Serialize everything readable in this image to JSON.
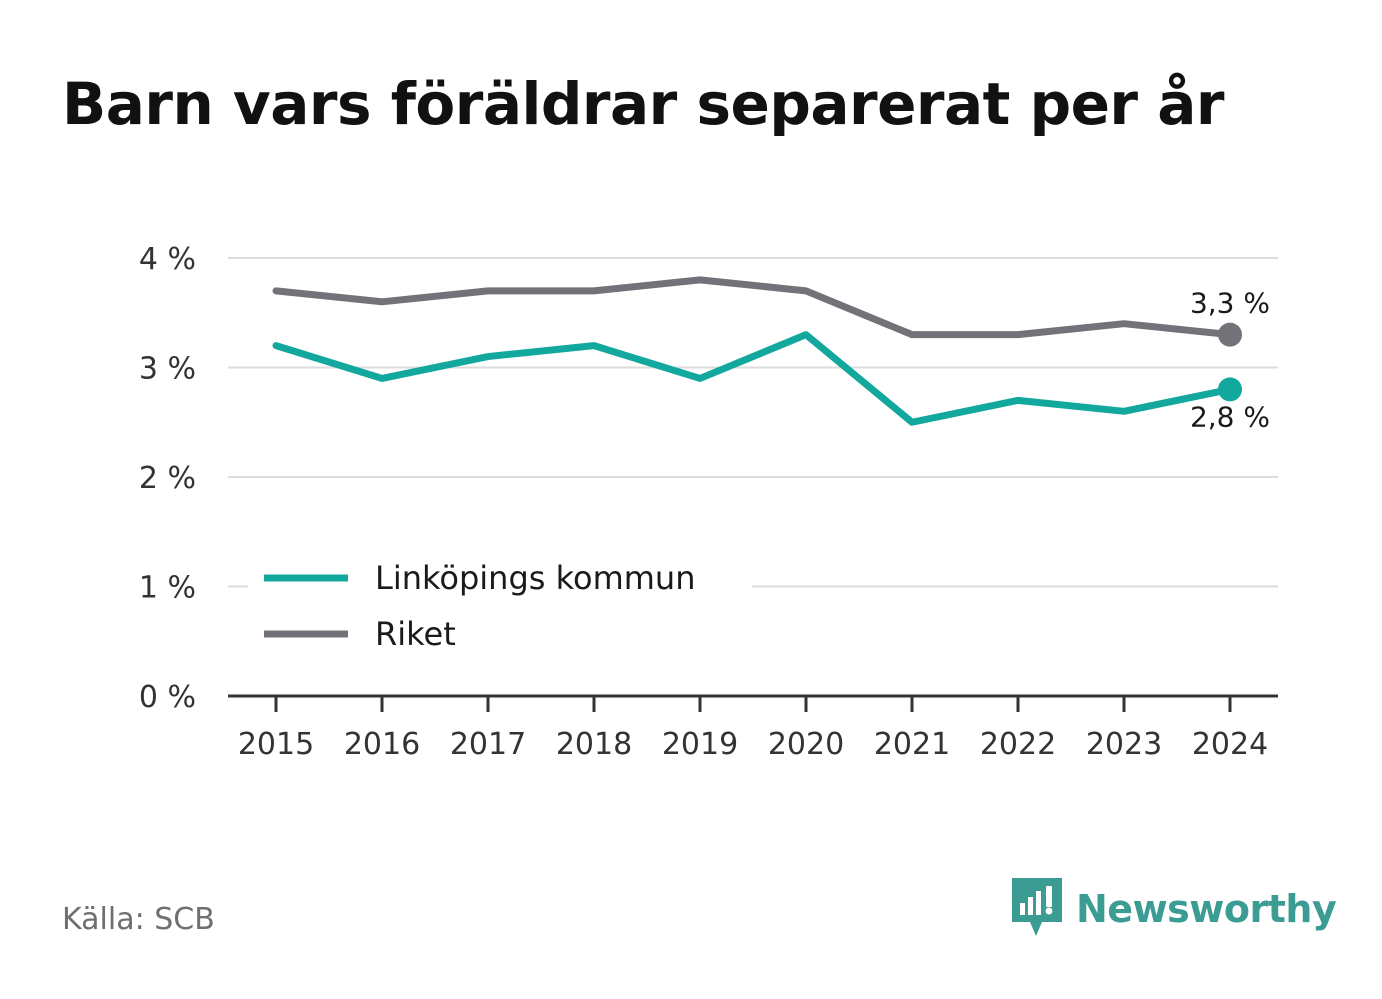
{
  "title": "Barn vars föräldrar separerat per år",
  "source": "Källa: SCB",
  "brand": {
    "name": "Newsworthy",
    "icon": "newsworthy-logo-icon",
    "color": "#3b9c93"
  },
  "chart_data": {
    "type": "line",
    "x": [
      "2015",
      "2016",
      "2017",
      "2018",
      "2019",
      "2020",
      "2021",
      "2022",
      "2023",
      "2024"
    ],
    "ylim": [
      0,
      4
    ],
    "yticks": [
      0,
      1,
      2,
      3,
      4
    ],
    "ytick_labels": [
      "0 %",
      "1 %",
      "2 %",
      "3 %",
      "4 %"
    ],
    "grid": true,
    "legend_position": "lower-left",
    "series": [
      {
        "name": "Linköpings kommun",
        "color": "#13a89e",
        "values": [
          3.2,
          2.9,
          3.1,
          3.2,
          2.9,
          3.3,
          2.5,
          2.7,
          2.6,
          2.8
        ],
        "end_label": "2,8 %"
      },
      {
        "name": "Riket",
        "color": "#737278",
        "values": [
          3.7,
          3.6,
          3.7,
          3.7,
          3.8,
          3.7,
          3.3,
          3.3,
          3.4,
          3.3
        ],
        "end_label": "3,3 %"
      }
    ]
  }
}
